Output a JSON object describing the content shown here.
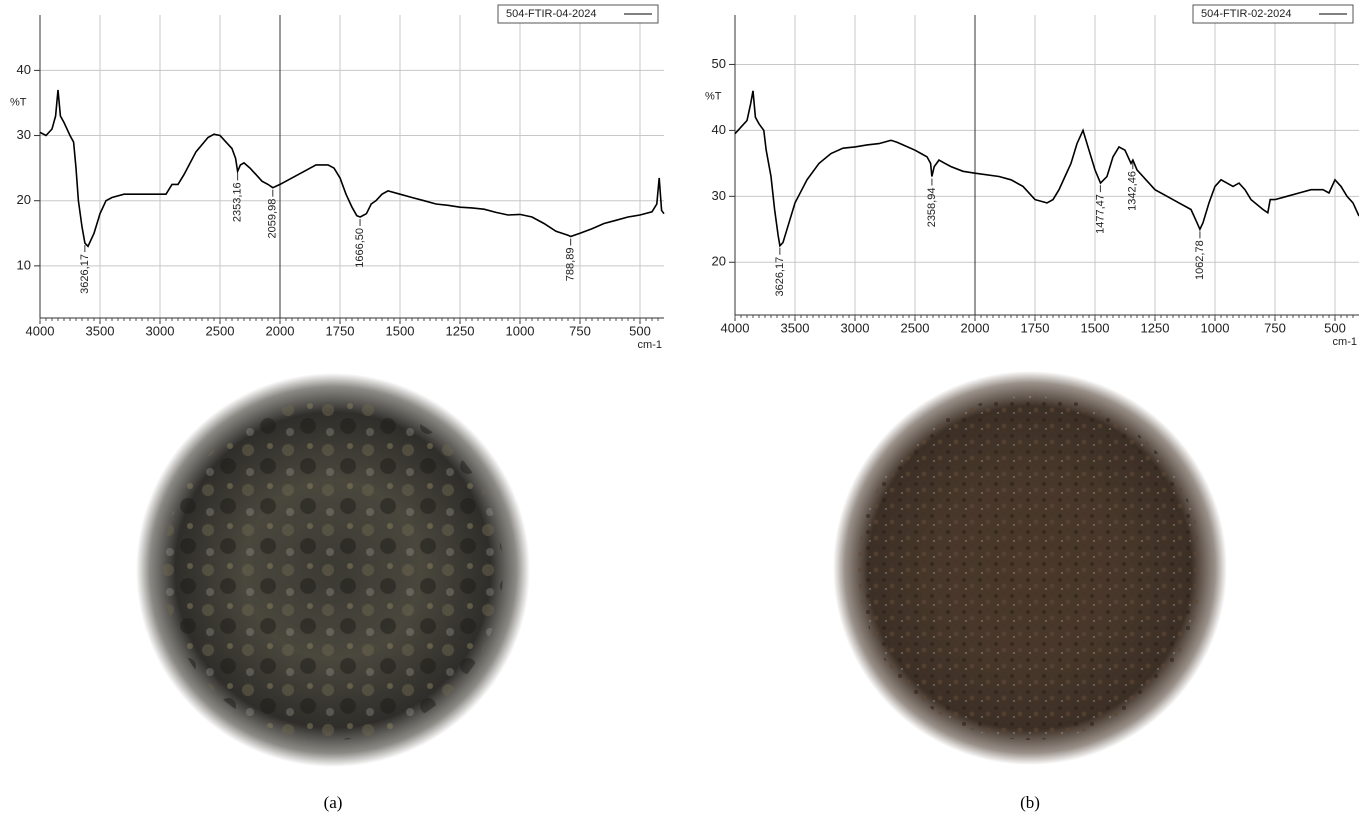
{
  "chart_data": [
    {
      "type": "line",
      "y_label": "%T",
      "x_label": "cm-1",
      "xlim": [
        4000,
        400
      ],
      "xticks": [
        4000,
        3500,
        3000,
        2500,
        2000,
        1750,
        1500,
        1250,
        1000,
        750,
        500
      ],
      "ylim": [
        2,
        48.5
      ],
      "yticks": [
        10,
        20,
        30,
        40
      ],
      "grid": true,
      "legend": "top-right",
      "x": [
        4000,
        3950,
        3900,
        3870,
        3850,
        3830,
        3800,
        3750,
        3720,
        3700,
        3680,
        3650,
        3626,
        3600,
        3550,
        3500,
        3450,
        3400,
        3300,
        3100,
        2950,
        2900,
        2850,
        2800,
        2700,
        2600,
        2550,
        2500,
        2450,
        2400,
        2370,
        2353,
        2330,
        2300,
        2250,
        2200,
        2150,
        2100,
        2060,
        2000,
        1950,
        1900,
        1850,
        1800,
        1775,
        1750,
        1725,
        1700,
        1680,
        1666,
        1640,
        1620,
        1600,
        1575,
        1550,
        1500,
        1450,
        1400,
        1350,
        1300,
        1250,
        1200,
        1150,
        1100,
        1050,
        1000,
        950,
        900,
        850,
        800,
        789,
        750,
        700,
        650,
        600,
        550,
        500,
        450,
        430,
        420,
        410,
        400
      ],
      "series": [
        {
          "name": "504-FTIR-04-2024",
          "color": "#000000",
          "values": [
            30.5,
            30,
            31,
            33,
            37,
            33,
            32,
            30,
            29,
            25,
            20,
            16,
            13.5,
            13,
            15,
            18,
            20,
            20.5,
            21,
            21,
            21,
            22.5,
            22.5,
            24,
            27.5,
            29.7,
            30.2,
            30,
            29,
            28,
            26.5,
            24.5,
            25.5,
            25.8,
            25,
            24,
            23,
            22.5,
            22,
            22.5,
            23.5,
            24.5,
            25.5,
            25.5,
            25,
            23.5,
            21,
            19,
            17.7,
            17.5,
            18,
            19.5,
            20,
            21,
            21.5,
            21,
            20.5,
            20,
            19.5,
            19.3,
            19,
            18.9,
            18.7,
            18.2,
            17.8,
            17.9,
            17.5,
            16.5,
            15.3,
            14.7,
            14.5,
            15,
            15.7,
            16.5,
            17,
            17.5,
            17.8,
            18.3,
            19.5,
            23.5,
            18.5,
            18
          ]
        }
      ],
      "annotations": [
        {
          "value": 3626.17,
          "label": "3626,17"
        },
        {
          "value": 2353.16,
          "label": "2353,16"
        },
        {
          "value": 2059.98,
          "label": "2059,98"
        },
        {
          "value": 1666.5,
          "label": "1666,50"
        },
        {
          "value": 788.89,
          "label": "788,89"
        }
      ],
      "caption": "(a)"
    },
    {
      "type": "line",
      "y_label": "%T",
      "x_label": "cm-1",
      "xlim": [
        4000,
        400
      ],
      "xticks": [
        4000,
        3500,
        3000,
        2500,
        2000,
        1750,
        1500,
        1250,
        1000,
        750,
        500
      ],
      "ylim": [
        12,
        57.5
      ],
      "yticks": [
        20,
        30,
        40,
        50
      ],
      "grid": true,
      "legend": "top-right",
      "x": [
        4000,
        3950,
        3900,
        3870,
        3850,
        3830,
        3800,
        3760,
        3740,
        3700,
        3670,
        3640,
        3626,
        3600,
        3550,
        3500,
        3400,
        3300,
        3200,
        3100,
        3000,
        2900,
        2800,
        2700,
        2650,
        2600,
        2500,
        2450,
        2400,
        2370,
        2359,
        2340,
        2300,
        2250,
        2200,
        2100,
        2000,
        1900,
        1850,
        1800,
        1750,
        1700,
        1675,
        1650,
        1625,
        1600,
        1575,
        1550,
        1525,
        1500,
        1477,
        1450,
        1425,
        1400,
        1375,
        1350,
        1342,
        1325,
        1300,
        1250,
        1200,
        1150,
        1100,
        1075,
        1063,
        1050,
        1025,
        1000,
        975,
        950,
        925,
        900,
        875,
        850,
        800,
        780,
        770,
        750,
        700,
        650,
        600,
        550,
        525,
        500,
        475,
        450,
        425,
        400
      ],
      "series": [
        {
          "name": "504-FTIR-02-2024",
          "color": "#000000",
          "values": [
            39.5,
            40.5,
            41.5,
            44,
            46,
            42,
            41,
            40,
            37,
            33,
            28,
            24,
            22.5,
            23,
            26,
            29,
            32.5,
            35,
            36.5,
            37.3,
            37.5,
            37.8,
            38,
            38.5,
            38.2,
            37.8,
            37,
            36.5,
            36,
            35,
            33,
            34.5,
            35.5,
            35,
            34.5,
            33.8,
            33.5,
            33,
            32.5,
            31.5,
            29.5,
            29,
            29.5,
            31,
            33,
            35,
            38,
            40,
            37,
            34,
            32,
            33,
            36,
            37.5,
            37,
            35,
            35.5,
            34,
            33,
            31,
            30,
            29,
            28,
            26,
            25,
            26,
            29,
            31.5,
            32.5,
            32,
            31.5,
            32,
            31,
            29.5,
            28,
            27.5,
            29.5,
            29.5,
            30,
            30.5,
            31,
            31,
            30.5,
            32.5,
            31.5,
            30,
            29,
            27
          ]
        }
      ],
      "annotations": [
        {
          "value": 3626.17,
          "label": "3626,17"
        },
        {
          "value": 2358.94,
          "label": "2358,94"
        },
        {
          "value": 1477.47,
          "label": "1477,47"
        },
        {
          "value": 1342.46,
          "label": "1342,46"
        },
        {
          "value": 1062.78,
          "label": "1062,78"
        }
      ],
      "caption": "(b)"
    }
  ]
}
